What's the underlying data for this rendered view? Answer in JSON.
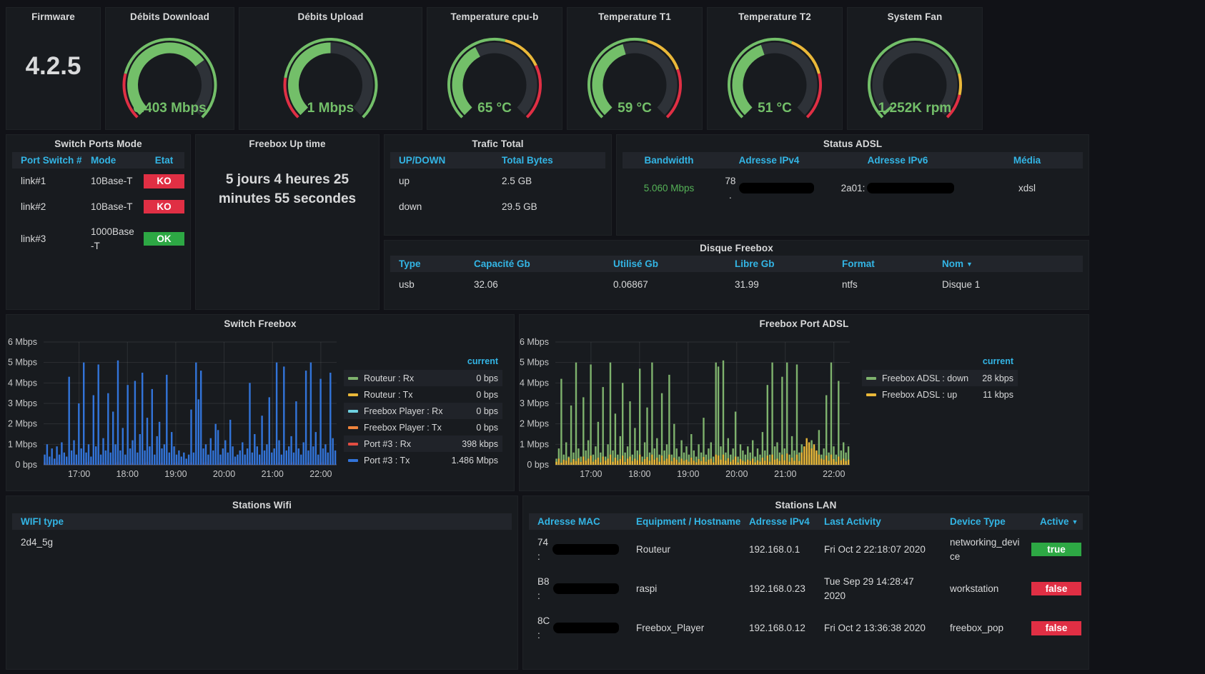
{
  "colors": {
    "page_bg": "#111217",
    "panel_bg": "#181b1f",
    "header_blue": "#33b5e5",
    "gauge_green": "#73bf69",
    "threshold_red": "#e02f44",
    "threshold_yellow": "#eab839",
    "badge_green": "#2da844",
    "badge_red": "#e02f44",
    "bandwidth_green": "#55b257"
  },
  "icons": {
    "sort_asc": "▲",
    "sort_desc": "▼"
  },
  "panels": {
    "firmware": {
      "title": "Firmware",
      "value": "4.2.5"
    },
    "gauges": [
      {
        "title": "Débits Download",
        "value": "6.403 Mbps",
        "fill": 0.7,
        "thresholds": [
          [
            "#e02f44",
            0.22
          ],
          [
            "#73bf69",
            1
          ]
        ]
      },
      {
        "title": "Débits Upload",
        "value": "1 Mbps",
        "fill": 0.5,
        "thresholds": [
          [
            "#e02f44",
            0.2
          ],
          [
            "#73bf69",
            1
          ]
        ]
      },
      {
        "title": "Temperature cpu-b",
        "value": "65 °C",
        "fill": 0.4,
        "thresholds": [
          [
            "#73bf69",
            0.55
          ],
          [
            "#eab839",
            0.74
          ],
          [
            "#e02f44",
            1
          ]
        ]
      },
      {
        "title": "Temperature T1",
        "value": "59 °C",
        "fill": 0.44,
        "thresholds": [
          [
            "#73bf69",
            0.56
          ],
          [
            "#eab839",
            0.76
          ],
          [
            "#e02f44",
            1
          ]
        ]
      },
      {
        "title": "Temperature T2",
        "value": "51 °C",
        "fill": 0.43,
        "thresholds": [
          [
            "#73bf69",
            0.58
          ],
          [
            "#eab839",
            0.78
          ],
          [
            "#e02f44",
            1
          ]
        ]
      },
      {
        "title": "System Fan",
        "value": "1.252K rpm",
        "fill": 0.015,
        "thresholds": [
          [
            "#73bf69",
            0.78
          ],
          [
            "#eab839",
            0.88
          ],
          [
            "#e02f44",
            1
          ]
        ]
      }
    ],
    "switch_ports": {
      "title": "Switch Ports Mode",
      "headers": [
        "Port Switch #",
        "Mode",
        "Etat"
      ],
      "rows": [
        {
          "port": "link#1",
          "mode": "10Base-T",
          "etat": "KO",
          "etat_color": "#e02f44"
        },
        {
          "port": "link#2",
          "mode": "10Base-T",
          "etat": "KO",
          "etat_color": "#e02f44"
        },
        {
          "port": "link#3",
          "mode": "1000Base-T",
          "etat": "OK",
          "etat_color": "#2da844"
        }
      ]
    },
    "uptime": {
      "title": "Freebox Up time",
      "text": "5 jours 4 heures 25 minutes 55 secondes"
    },
    "trafic_total": {
      "title": "Trafic Total",
      "headers": [
        "UP/DOWN",
        "Total Bytes"
      ],
      "rows": [
        [
          "up",
          "2.5 GB"
        ],
        [
          "down",
          "29.5 GB"
        ]
      ]
    },
    "status_adsl": {
      "title": "Status ADSL",
      "headers": [
        "Bandwidth",
        "Adresse IPv4",
        "Adresse IPv6",
        "Média"
      ],
      "row": {
        "bandwidth": "5.060 Mbps",
        "ipv4_prefix": "78.",
        "ipv6_prefix": "2a01:",
        "media": "xdsl"
      }
    },
    "disque": {
      "title": "Disque Freebox",
      "headers": [
        "Type",
        "Capacité Gb",
        "Utilisé Gb",
        "Libre Gb",
        "Format",
        "Nom"
      ],
      "row": [
        "usb",
        "32.06",
        "0.06867",
        "31.99",
        "ntfs",
        "Disque 1"
      ]
    },
    "stations_wifi": {
      "title": "Stations Wifi",
      "headers": [
        "WIFI type"
      ],
      "rows": [
        [
          "2d4_5g"
        ]
      ]
    },
    "stations_lan": {
      "title": "Stations LAN",
      "headers": [
        "Adresse MAC",
        "Equipment / Hostname",
        "Adresse IPv4",
        "Last Activity",
        "Device Type",
        "Active"
      ],
      "rows": [
        {
          "mac_prefix": "74:",
          "hostname": "Routeur",
          "ipv4": "192.168.0.1",
          "last": "Fri Oct 2 22:18:07 2020",
          "type": "networking_device",
          "active": "true",
          "active_color": "#2da844"
        },
        {
          "mac_prefix": "B8:",
          "hostname": "raspi",
          "ipv4": "192.168.0.23",
          "last": "Tue Sep 29 14:28:47 2020",
          "type": "workstation",
          "active": "false",
          "active_color": "#e02f44"
        },
        {
          "mac_prefix": "8C:",
          "hostname": "Freebox_Player",
          "ipv4": "192.168.0.12",
          "last": "Fri Oct 2 13:36:38 2020",
          "type": "freebox_pop",
          "active": "false",
          "active_color": "#e02f44"
        }
      ]
    }
  },
  "chart_data": [
    {
      "type": "area",
      "title": "Switch Freebox",
      "ylim": [
        0,
        6
      ],
      "y_ticks": [
        "6 Mbps",
        "5 Mbps",
        "4 Mbps",
        "3 Mbps",
        "2 Mbps",
        "1 Mbps",
        "0 bps"
      ],
      "x_ticks": [
        "17:00",
        "18:00",
        "19:00",
        "20:00",
        "21:00",
        "22:00"
      ],
      "grid": true,
      "legend_position": "right",
      "legend_header": "current",
      "series": [
        {
          "name": "Routeur : Rx",
          "color": "#7eb26d",
          "current": "0 bps",
          "values": []
        },
        {
          "name": "Routeur : Tx",
          "color": "#eab839",
          "current": "0 bps",
          "values": []
        },
        {
          "name": "Freebox Player : Rx",
          "color": "#6ed0e0",
          "current": "0 bps",
          "values": []
        },
        {
          "name": "Freebox Player : Tx",
          "color": "#ef843c",
          "current": "0 bps",
          "values": []
        },
        {
          "name": "Port #3 : Rx",
          "color": "#e24d42",
          "current": "398 kbps",
          "values": [
            0.12,
            0.05,
            0.2,
            0.08,
            0.3,
            0.1,
            0.15,
            0.06,
            0.25,
            0.09,
            0.18,
            0.07,
            0.12,
            0.05,
            0.2,
            0.08,
            0.3,
            0.1,
            0.15,
            0.06,
            0.25,
            0.09,
            0.18,
            0.07,
            0.12,
            0.05,
            0.2,
            0.08,
            0.3,
            0.1,
            0.15,
            0.06,
            0.25,
            0.09,
            0.18,
            0.07,
            0.12,
            0.05,
            0.2,
            0.08,
            0.3,
            0.1,
            0.15,
            0.06,
            0.25,
            0.09,
            0.18,
            0.07,
            0.12,
            0.05,
            0.2,
            0.08,
            0.3,
            0.1,
            0.15,
            0.06,
            0.25,
            0.09,
            0.18,
            0.07,
            0.12,
            0.05,
            0.2,
            0.08,
            0.3,
            0.1,
            0.15,
            0.06,
            0.25,
            0.09,
            0.18,
            0.07,
            0.12,
            0.05,
            0.2,
            0.08,
            0.3,
            0.1,
            0.15,
            0.06,
            0.25,
            0.09,
            0.18,
            0.07,
            0.12,
            0.05,
            0.2,
            0.08,
            0.3,
            0.1,
            0.15,
            0.06,
            0.25,
            0.09,
            0.18,
            0.07,
            0.12,
            0.05,
            0.2,
            0.08,
            0.3,
            0.1,
            0.15,
            0.06,
            0.25,
            0.09,
            0.18,
            0.07,
            0.12,
            0.05,
            0.2,
            0.08,
            0.3,
            0.1,
            0.15,
            0.06,
            0.25,
            0.09,
            0.18,
            0.07
          ]
        },
        {
          "name": "Port #3 : Tx",
          "color": "#3274d9",
          "current": "1.486 Mbps",
          "values": [
            0.5,
            1.0,
            0.4,
            0.8,
            0.3,
            0.9,
            0.5,
            1.1,
            0.6,
            0.4,
            4.3,
            0.7,
            1.2,
            0.5,
            3.0,
            0.8,
            5.0,
            0.6,
            1.0,
            0.4,
            3.4,
            0.9,
            4.9,
            0.5,
            1.3,
            0.7,
            3.5,
            0.6,
            2.6,
            1.0,
            5.1,
            0.7,
            1.8,
            0.5,
            3.9,
            0.8,
            1.2,
            4.1,
            0.6,
            1.5,
            4.5,
            0.7,
            2.3,
            0.9,
            3.7,
            0.5,
            1.4,
            2.1,
            0.8,
            1.0,
            4.4,
            0.6,
            1.6,
            0.9,
            0.5,
            0.7,
            0.4,
            0.6,
            0.3,
            0.5,
            2.7,
            0.6,
            5.0,
            3.2,
            4.6,
            0.8,
            1.0,
            0.5,
            1.3,
            0.7,
            2.0,
            1.7,
            0.5,
            0.8,
            1.2,
            0.6,
            2.2,
            0.9,
            0.4,
            0.5,
            0.7,
            1.1,
            0.5,
            0.8,
            4.0,
            0.6,
            1.5,
            0.9,
            0.5,
            2.4,
            0.7,
            1.0,
            3.3,
            0.6,
            0.8,
            5.0,
            1.2,
            0.5,
            4.8,
            0.7,
            0.9,
            1.4,
            0.6,
            3.1,
            0.8,
            0.5,
            1.1,
            4.6,
            0.7,
            5.0,
            0.9,
            1.6,
            0.5,
            4.2,
            0.8,
            1.0,
            0.6,
            4.5,
            1.3,
            0.7
          ]
        }
      ]
    },
    {
      "type": "area",
      "title": "Freebox Port ADSL",
      "ylim": [
        0,
        6
      ],
      "y_ticks": [
        "6 Mbps",
        "5 Mbps",
        "4 Mbps",
        "3 Mbps",
        "2 Mbps",
        "1 Mbps",
        "0 bps"
      ],
      "x_ticks": [
        "17:00",
        "18:00",
        "19:00",
        "20:00",
        "21:00",
        "22:00"
      ],
      "grid": true,
      "legend_position": "right",
      "legend_header": "current",
      "series": [
        {
          "name": "Freebox ADSL : down",
          "color": "#7eb26d",
          "current": "28 kbps",
          "values": [
            0.3,
            0.8,
            4.2,
            0.5,
            1.1,
            0.4,
            2.9,
            0.6,
            5.0,
            0.8,
            0.4,
            3.3,
            0.7,
            1.2,
            4.9,
            0.5,
            0.9,
            2.1,
            0.6,
            3.8,
            0.4,
            1.0,
            5.0,
            0.7,
            2.5,
            0.5,
            1.4,
            4.0,
            0.6,
            0.9,
            3.1,
            0.5,
            1.8,
            0.7,
            4.7,
            0.4,
            1.1,
            2.8,
            0.6,
            5.0,
            0.8,
            1.3,
            0.5,
            3.5,
            0.7,
            1.0,
            4.4,
            0.5,
            2.0,
            0.8,
            0.4,
            1.2,
            0.6,
            0.9,
            0.5,
            1.5,
            0.7,
            0.4,
            1.0,
            0.6,
            2.3,
            0.5,
            0.8,
            1.1,
            0.4,
            5.0,
            4.8,
            0.9,
            5.1,
            0.6,
            1.3,
            0.5,
            0.8,
            2.6,
            0.4,
            1.0,
            0.7,
            0.5,
            0.9,
            0.6,
            1.2,
            0.4,
            0.8,
            0.5,
            1.6,
            0.7,
            3.9,
            0.5,
            5.0,
            0.9,
            1.1,
            0.6,
            4.3,
            0.8,
            5.0,
            0.5,
            1.4,
            0.7,
            4.9,
            0.6,
            1.0,
            0.4,
            0.8,
            0.5,
            1.2,
            0.9,
            0.6,
            1.7,
            0.5,
            0.8,
            3.4,
            0.6,
            5.0,
            0.9,
            0.5,
            4.1,
            0.7,
            1.1,
            0.6,
            0.9
          ]
        },
        {
          "name": "Freebox ADSL : up",
          "color": "#eab839",
          "current": "11 kbps",
          "values": [
            0.15,
            0.3,
            0.1,
            0.25,
            0.2,
            0.35,
            0.12,
            0.28,
            0.18,
            0.32,
            0.14,
            0.4,
            0.2,
            0.3,
            0.45,
            0.15,
            0.25,
            0.35,
            0.12,
            0.4,
            0.2,
            0.3,
            0.5,
            0.15,
            0.35,
            0.2,
            0.28,
            0.45,
            0.14,
            0.3,
            0.4,
            0.18,
            0.3,
            0.22,
            0.5,
            0.15,
            0.28,
            0.38,
            0.2,
            0.5,
            0.25,
            0.35,
            0.15,
            0.45,
            0.2,
            0.3,
            0.5,
            0.18,
            0.35,
            0.25,
            0.12,
            0.3,
            0.2,
            0.25,
            0.15,
            0.35,
            0.2,
            0.12,
            0.28,
            0.18,
            0.38,
            0.15,
            0.25,
            0.3,
            0.12,
            0.5,
            0.45,
            0.25,
            0.5,
            0.2,
            0.32,
            0.15,
            0.25,
            0.4,
            0.12,
            0.28,
            0.2,
            0.15,
            0.25,
            0.18,
            0.3,
            0.12,
            0.22,
            0.15,
            0.35,
            0.2,
            0.45,
            0.15,
            0.5,
            0.25,
            0.3,
            0.18,
            0.5,
            0.22,
            0.55,
            0.15,
            0.35,
            0.2,
            0.5,
            0.18,
            0.6,
            0.9,
            1.3,
            1.1,
            0.8,
            1.0,
            0.7,
            0.5,
            0.3,
            0.25,
            0.45,
            0.2,
            0.5,
            0.28,
            0.15,
            0.4,
            0.22,
            0.3,
            0.18,
            0.25
          ]
        }
      ]
    }
  ]
}
